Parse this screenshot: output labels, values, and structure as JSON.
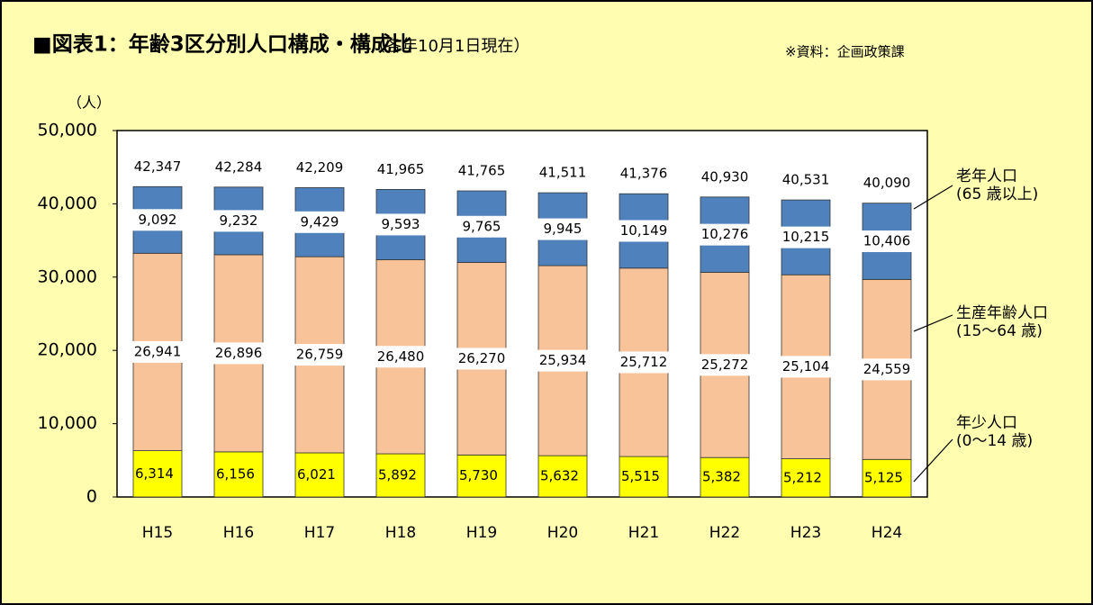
{
  "chart_data": {
    "type": "stacked-bar",
    "title": "■図表1：年齢3区分別人口構成・構成比",
    "subtitle": "（各年10月1日現在）",
    "source": "※資料：企画政策課",
    "y_label": "（人）",
    "categories": [
      "H15",
      "H16",
      "H17",
      "H18",
      "H19",
      "H20",
      "H21",
      "H22",
      "H23",
      "H24"
    ],
    "series": [
      {
        "name": "年少人口",
        "age_range": "(0〜14 歳)",
        "color": "#ffff00",
        "values": [
          6314,
          6156,
          6021,
          5892,
          5730,
          5632,
          5515,
          5382,
          5212,
          5125
        ],
        "value_labels": [
          "6,314",
          "6,156",
          "6,021",
          "5,892",
          "5,730",
          "5,632",
          "5,515",
          "5,382",
          "5,212",
          "5,125"
        ]
      },
      {
        "name": "生産年齢人口",
        "age_range": "(15〜64 歳)",
        "color": "#f9c39a",
        "values": [
          26941,
          26896,
          26759,
          26480,
          26270,
          25934,
          25712,
          25272,
          25104,
          24559
        ],
        "value_labels": [
          "26,941",
          "26,896",
          "26,759",
          "26,480",
          "26,270",
          "25,934",
          "25,712",
          "25,272",
          "25,104",
          "24,559"
        ]
      },
      {
        "name": "老年人口",
        "age_range": "(65 歳以上)",
        "color": "#4f81bd",
        "values": [
          9092,
          9232,
          9429,
          9593,
          9765,
          9945,
          10149,
          10276,
          10215,
          10406
        ],
        "value_labels": [
          "9,092",
          "9,232",
          "9,429",
          "9,593",
          "9,765",
          "9,945",
          "10,149",
          "10,276",
          "10,215",
          "10,406"
        ]
      }
    ],
    "totals": {
      "values": [
        42347,
        42284,
        42209,
        41965,
        41765,
        41511,
        41376,
        40930,
        40531,
        40090
      ],
      "value_labels": [
        "42,347",
        "42,284",
        "42,209",
        "41,965",
        "41,765",
        "41,511",
        "41,376",
        "40,930",
        "40,531",
        "40,090"
      ]
    },
    "ylim": [
      0,
      50000
    ],
    "yticks": [
      0,
      {
        "value": 10000,
        "label": "10,000"
      },
      {
        "value": 20000,
        "label": "20,000"
      },
      {
        "value": 30000,
        "label": "30,000"
      },
      {
        "value": 40000,
        "label": "40,000"
      },
      {
        "value": 50000,
        "label": "50,000"
      }
    ]
  }
}
